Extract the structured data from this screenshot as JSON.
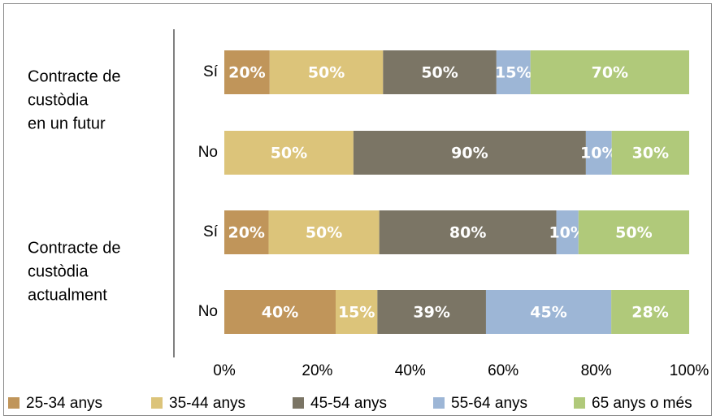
{
  "chart_data": {
    "type": "bar",
    "orientation": "horizontal",
    "stacked": "percent",
    "groups": [
      {
        "label_lines": [
          "Contracte de",
          "custòdia",
          "en un futur"
        ]
      },
      {
        "label_lines": [
          "Contracte de",
          "custòdia",
          "actualment"
        ]
      }
    ],
    "categories": [
      "Sí",
      "No",
      "Sí",
      "No"
    ],
    "category_group": [
      0,
      0,
      1,
      1
    ],
    "series": [
      {
        "name": "25-34 anys",
        "color": "#c0955a",
        "values": [
          20,
          0,
          20,
          40
        ],
        "labels": [
          "20%",
          "",
          "20%",
          "40%"
        ]
      },
      {
        "name": "35-44 anys",
        "color": "#dcc47a",
        "values": [
          50,
          50,
          50,
          15
        ],
        "labels": [
          "50%",
          "50%",
          "50%",
          "15%"
        ]
      },
      {
        "name": "45-54 anys",
        "color": "#7b7565",
        "values": [
          50,
          90,
          80,
          39
        ],
        "labels": [
          "50%",
          "90%",
          "80%",
          "39%"
        ]
      },
      {
        "name": "55-64 anys",
        "color": "#9db6d6",
        "values": [
          15,
          10,
          10,
          45
        ],
        "labels": [
          "15%",
          "10%",
          "10%",
          "45%"
        ]
      },
      {
        "name": "65 anys o més",
        "color": "#b0c97a",
        "values": [
          70,
          30,
          50,
          28
        ],
        "labels": [
          "70%",
          "30%",
          "50%",
          "28%"
        ]
      }
    ],
    "x_ticks": [
      "0%",
      "20%",
      "40%",
      "60%",
      "80%",
      "100%"
    ],
    "xlim": [
      0,
      100
    ],
    "grid": false,
    "legend_position": "bottom",
    "title": "",
    "xlabel": "",
    "ylabel": ""
  }
}
